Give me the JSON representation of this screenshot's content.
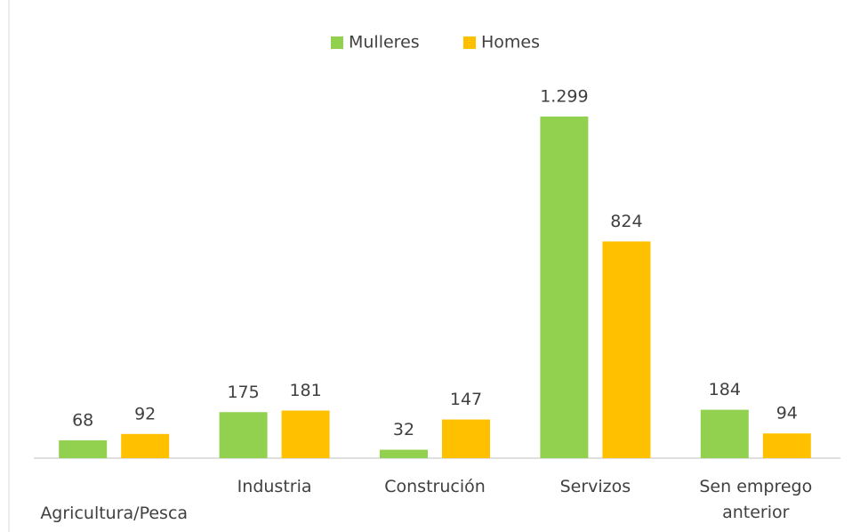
{
  "chart_data": {
    "type": "bar",
    "categories": [
      "Agricultura/Pesca",
      "Industria",
      "Construción",
      "Servizos",
      "Sen emprego anterior"
    ],
    "series": [
      {
        "name": "Mulleres",
        "color": "#92d050",
        "values": [
          68,
          175,
          32,
          1299,
          184
        ],
        "value_labels": [
          "68",
          "175",
          "32",
          "1.299",
          "184"
        ]
      },
      {
        "name": "Homes",
        "color": "#ffc000",
        "values": [
          92,
          181,
          147,
          824,
          94
        ]
      }
    ],
    "legend": "top"
  }
}
